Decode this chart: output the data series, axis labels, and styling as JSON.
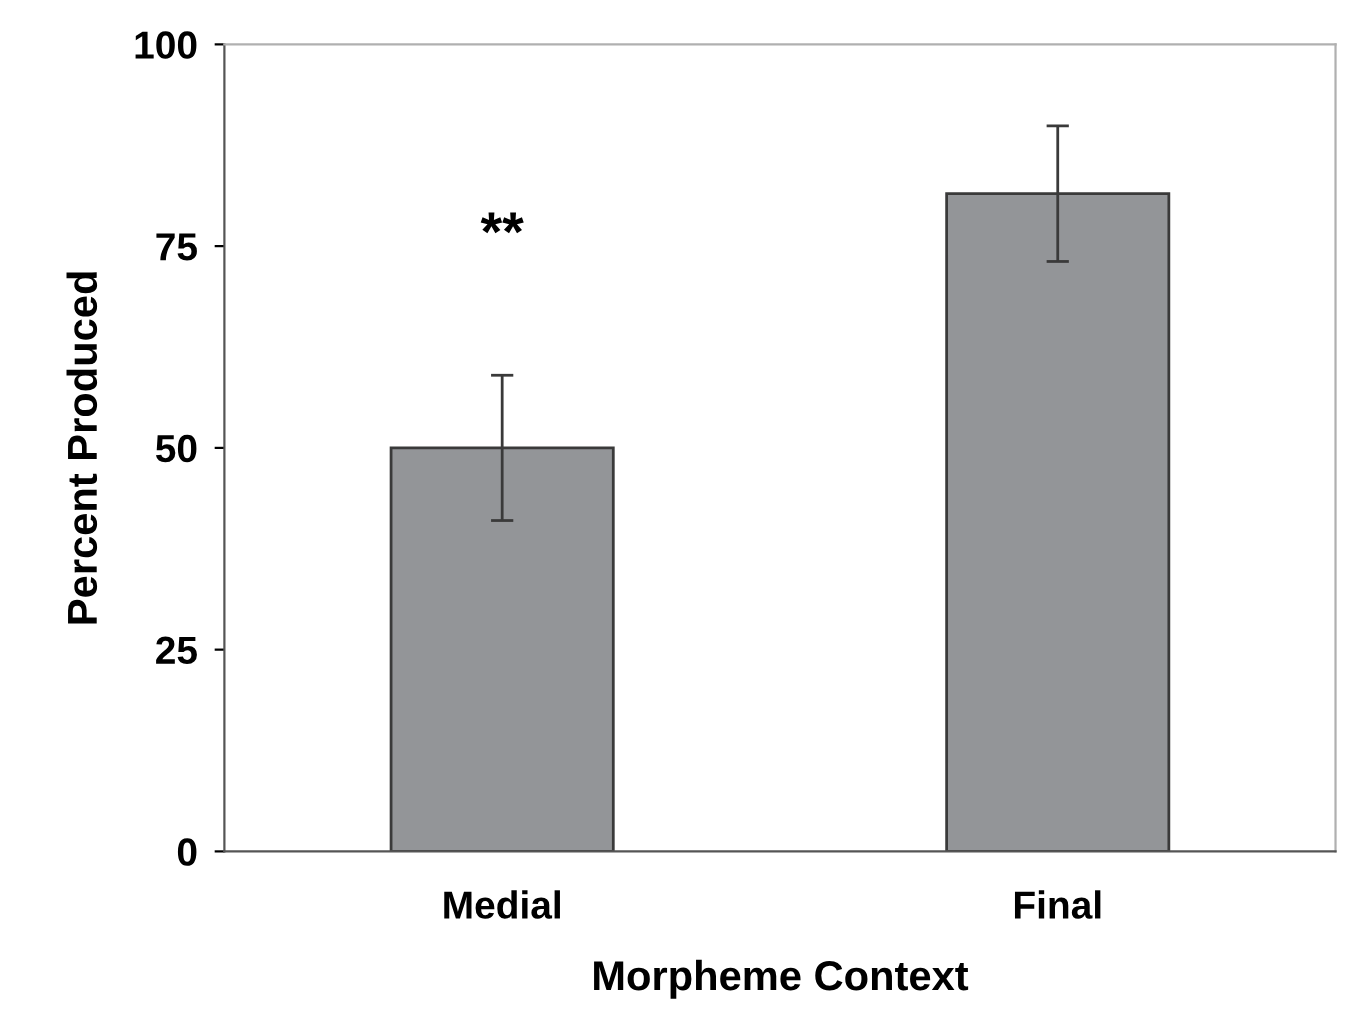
{
  "chart_data": {
    "type": "bar",
    "categories": [
      "Medial",
      "Final"
    ],
    "values": [
      50,
      81.5
    ],
    "errors": [
      9,
      8.4
    ],
    "color": "#939598",
    "xlabel": "Morpheme Context",
    "ylabel": "Percent Produced",
    "ylim": [
      0,
      100
    ],
    "yticks": [
      0,
      25,
      50,
      75,
      100
    ],
    "grid": false,
    "annotations": [
      "**"
    ]
  }
}
